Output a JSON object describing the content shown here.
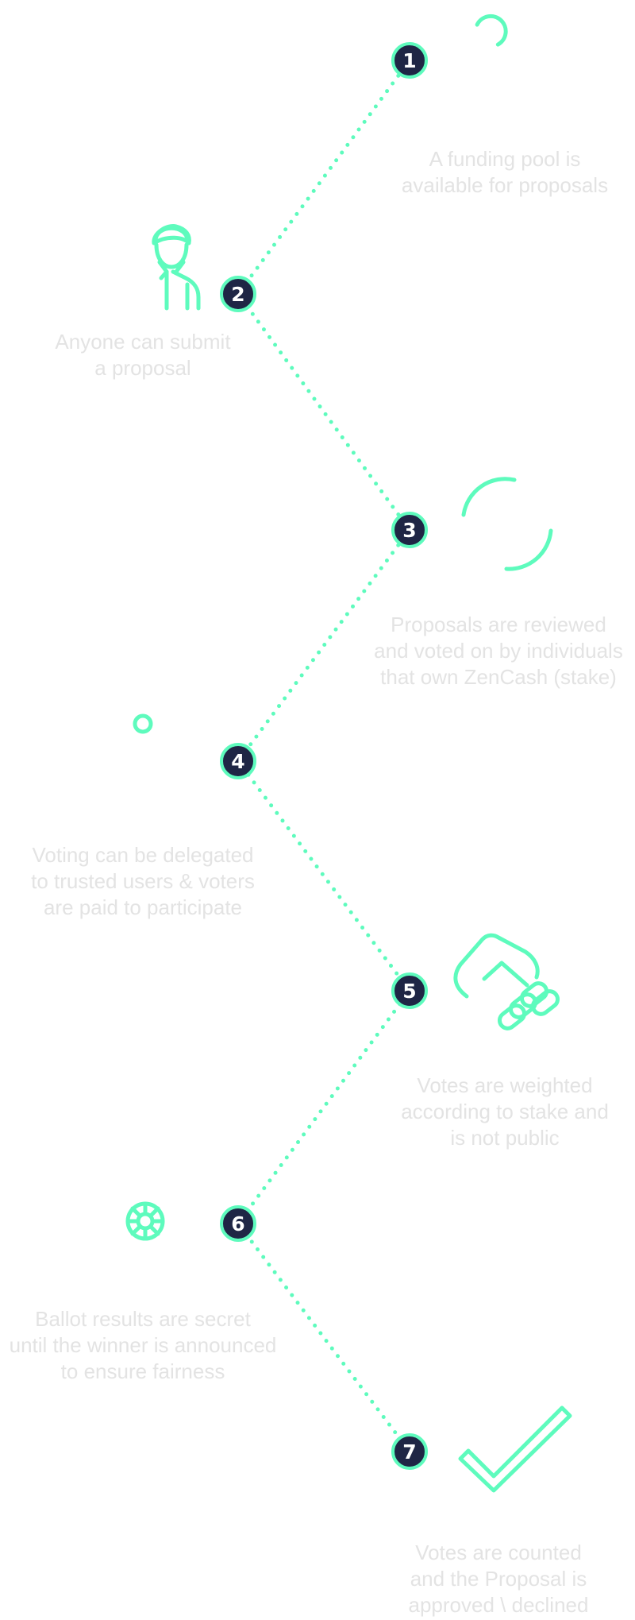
{
  "colors": {
    "accent": "#5efbbd",
    "node_fill": "#1f2645",
    "label_text": "#e3e3e3",
    "background": "#ffffff"
  },
  "steps": [
    {
      "number": "1",
      "label": "A funding pool is\navailable for proposals",
      "icon": "circle-arc-icon"
    },
    {
      "number": "2",
      "label": "Anyone can submit\na proposal",
      "icon": "person-icon"
    },
    {
      "number": "3",
      "label": "Proposals are reviewed\nand voted on by individuals\nthat own ZenCash (stake)",
      "icon": "circle-arc-icon"
    },
    {
      "number": "4",
      "label": "Voting can be delegated\nto trusted users & voters\nare paid to participate",
      "icon": "small-circle-icon"
    },
    {
      "number": "5",
      "label": "Votes are weighted\naccording to stake and\nis not public",
      "icon": "hand-icon"
    },
    {
      "number": "6",
      "label": "Ballot results are secret\nuntil the winner is announced\nto ensure fairness",
      "icon": "wheel-icon"
    },
    {
      "number": "7",
      "label": "Votes are counted\nand the Proposal is\napproved \\ declined",
      "icon": "checkmark-icon"
    }
  ]
}
